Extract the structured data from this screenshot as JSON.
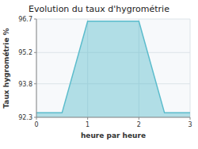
{
  "chart_data": {
    "type": "area",
    "title": "Evolution du taux d'hygrométrie",
    "xlabel": "heure par heure",
    "ylabel": "Taux hygrométrie %",
    "x": [
      0,
      0.5,
      1,
      2,
      2.5,
      3
    ],
    "y": [
      92.5,
      92.5,
      96.6,
      96.6,
      92.5,
      92.5
    ],
    "color": "#5bbccc",
    "xlim": [
      0,
      3
    ],
    "ylim": [
      92.3,
      96.7
    ],
    "xticks": [
      0,
      1,
      2,
      3
    ],
    "yticks": [
      92.3,
      93.8,
      95.2,
      96.7
    ],
    "grid": true
  }
}
